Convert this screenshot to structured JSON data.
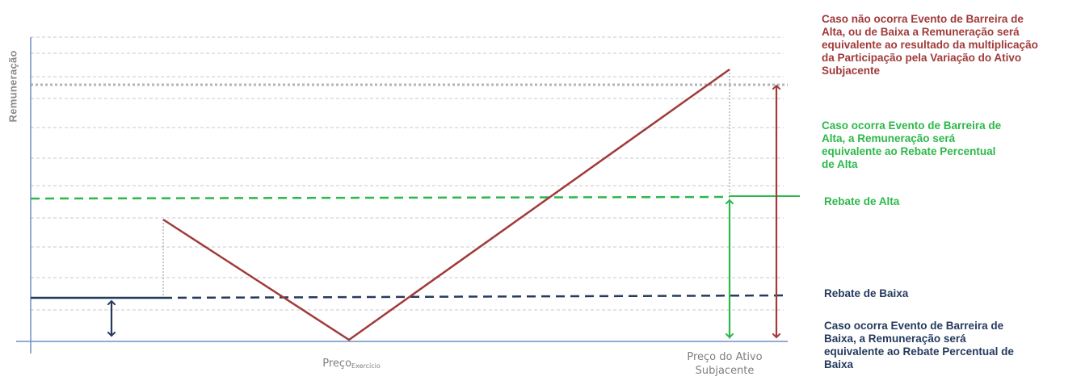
{
  "axes": {
    "y_label": "Remuneração",
    "x_strike_label": "Preço",
    "x_strike_subscript": "Exercício",
    "x_asset_label_line1": "Preço do Ativo",
    "x_asset_label_line2": "Subjacente"
  },
  "notes": {
    "no_barrier": [
      "Caso não ocorra Evento de Barreira de",
      "Alta, ou de Baixa a Remuneração  será",
      "equivalente  ao resultado da multiplicação",
      "da Participação pela Variação do Ativo",
      "Subjacente"
    ],
    "high_barrier": [
      "Caso ocorra Evento de Barreira de",
      "Alta, a Remuneração  será",
      "equivalente  ao Rebate Percentual",
      "de Alta"
    ],
    "high_rebate_label": "Rebate de Alta",
    "low_rebate_label": "Rebate de Baixa",
    "low_barrier": [
      "Caso ocorra Evento de Barreira de",
      "Baixa, a Remuneração  será",
      "equivalente  ao Rebate Percentual de",
      "Baixa"
    ]
  },
  "colors": {
    "payoff": "#a13a3a",
    "high_rebate": "#2db84a",
    "low_rebate": "#253a5e",
    "axis": "#6f8fc8",
    "grid": "#c8c8c8"
  }
}
